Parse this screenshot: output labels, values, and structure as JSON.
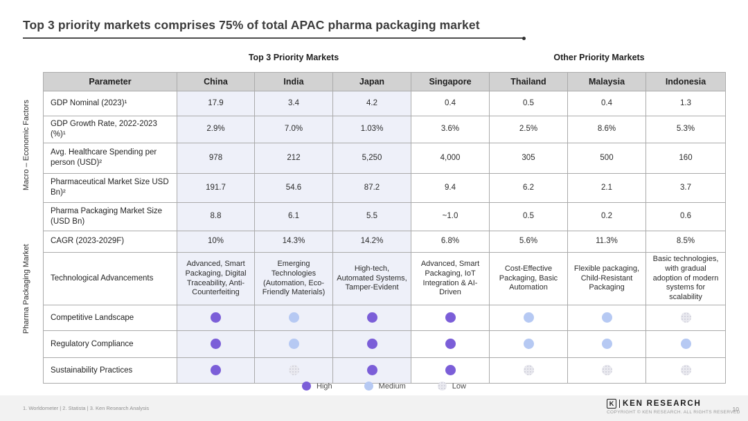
{
  "title": "Top 3 priority markets comprises 75% of total APAC pharma packaging market",
  "section_headers": {
    "top3": "Top 3 Priority Markets",
    "other": "Other Priority Markets"
  },
  "group_labels": {
    "macro": "Macro – Economic Factors",
    "pharma": "Pharma Packaging Market"
  },
  "table": {
    "columns": [
      "Parameter",
      "China",
      "India",
      "Japan",
      "Singapore",
      "Thailand",
      "Malaysia",
      "Indonesia"
    ],
    "rows": [
      {
        "parameter": "GDP Nominal (2023)¹",
        "type": "text",
        "values": [
          "17.9",
          "3.4",
          "4.2",
          "0.4",
          "0.5",
          "0.4",
          "1.3"
        ]
      },
      {
        "parameter": "GDP Growth Rate, 2022-2023 (%)¹",
        "type": "text",
        "values": [
          "2.9%",
          "7.0%",
          "1.03%",
          "3.6%",
          "2.5%",
          "8.6%",
          "5.3%"
        ]
      },
      {
        "parameter": "Avg. Healthcare Spending per person (USD)²",
        "type": "text",
        "values": [
          "978",
          "212",
          "5,250",
          "4,000",
          "305",
          "500",
          "160"
        ]
      },
      {
        "parameter": "Pharmaceutical Market Size USD Bn)²",
        "type": "text",
        "values": [
          "191.7",
          "54.6",
          "87.2",
          "9.4",
          "6.2",
          "2.1",
          "3.7"
        ]
      },
      {
        "parameter": "Pharma Packaging Market Size (USD Bn)",
        "type": "text",
        "values": [
          "8.8",
          "6.1",
          "5.5",
          "~1.0",
          "0.5",
          "0.2",
          "0.6"
        ]
      },
      {
        "parameter": "CAGR (2023-2029F)",
        "type": "text",
        "values": [
          "10%",
          "14.3%",
          "14.2%",
          "6.8%",
          "5.6%",
          "11.3%",
          "8.5%"
        ]
      },
      {
        "parameter": "Technological Advancements",
        "type": "text",
        "values": [
          "Advanced, Smart Packaging, Digital Traceability, Anti-Counterfeiting",
          "Emerging Technologies (Automation, Eco-Friendly Materials)",
          "High-tech, Automated Systems, Tamper-Evident",
          "Advanced, Smart Packaging, IoT Integration & AI-Driven",
          "Cost-Effective Packaging, Basic Automation",
          "Flexible packaging, Child-Resistant Packaging",
          "Basic technologies, with gradual adoption of modern systems for scalability"
        ]
      },
      {
        "parameter": "Competitive Landscape",
        "type": "dots",
        "values": [
          "high",
          "medium",
          "high",
          "high",
          "medium",
          "medium",
          "low"
        ]
      },
      {
        "parameter": "Regulatory Compliance",
        "type": "dots",
        "values": [
          "high",
          "medium",
          "high",
          "high",
          "medium",
          "medium",
          "medium"
        ]
      },
      {
        "parameter": "Sustainability Practices",
        "type": "dots",
        "values": [
          "high",
          "low",
          "high",
          "high",
          "low",
          "low",
          "low"
        ]
      }
    ]
  },
  "legend": [
    {
      "label": "High",
      "level": "high"
    },
    {
      "label": "Medium",
      "level": "medium"
    },
    {
      "label": "Low",
      "level": "low"
    }
  ],
  "colors": {
    "high": "#7b5ed8",
    "medium": "#b6c9f3",
    "low": "#e9e9ef",
    "header_bg": "#d2d2d2",
    "top3_column_bg": "#eef0f9"
  },
  "footer": {
    "sources": "1. Worldometer | 2. Statista |  3. Ken Research Analysis",
    "logo_letter": "K",
    "brand": "KEN RESEARCH",
    "copyright": "COPYRIGHT © KEN RESEARCH. ALL RIGHTS RESERVED",
    "page": "10"
  }
}
